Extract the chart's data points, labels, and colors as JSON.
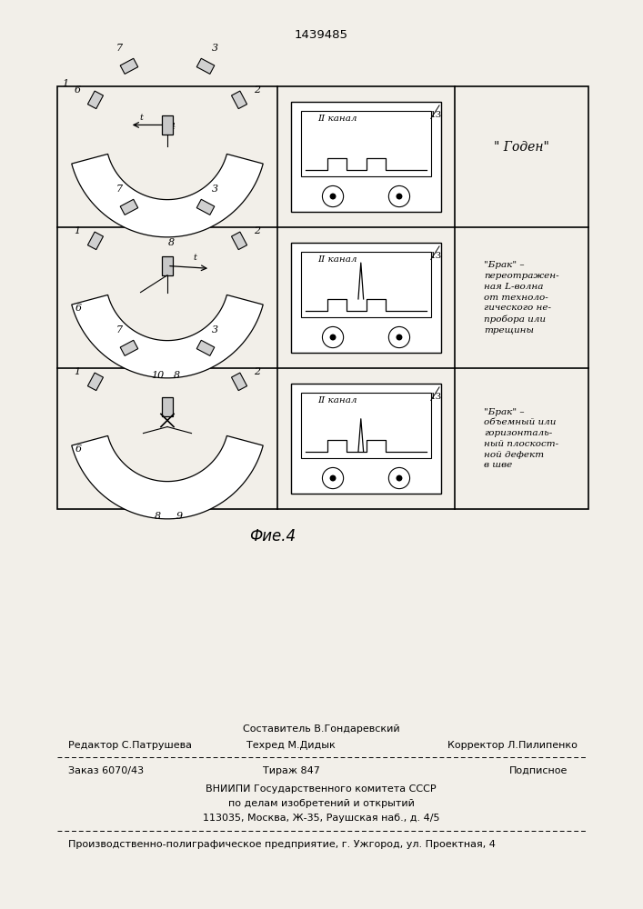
{
  "bg_color": "#f2efe9",
  "patent_number": "1439485",
  "fig_caption": "Фие.4",
  "footer": {
    "line1_above": "Составитель В.Гондаревский",
    "line1_left": "Редактор С.Патрушева",
    "line1_center": "Техред М.Дидык",
    "line1_right": "Корректор Л.Пилипенко",
    "line2_left": "Заказ 6070/43",
    "line2_center": "Тираж 847",
    "line2_right": "Подписное",
    "line3": "ВНИИПИ Государственного комитета СССР",
    "line4": "по делам изобретений и открытий",
    "line5": "113035, Москва, Ж-35, Раушская наб., д. 4/5",
    "line6": "Производственно-полиграфическое предприятие, г. Ужгород, ул. Проектная, 4"
  },
  "channel_label": "II канал",
  "channel_num": "13",
  "row1_desc": "\" Годен\"",
  "row2_desc": "\"Брак\" –\nпереотражен-\nная L-волна\nот техноло-\nгического не-\nпробора или\nтрещины",
  "row3_desc": "\"Брак\" –\nобъемный или\nгоризонталь-\nный плоскост-\nной дефект\nв шве"
}
